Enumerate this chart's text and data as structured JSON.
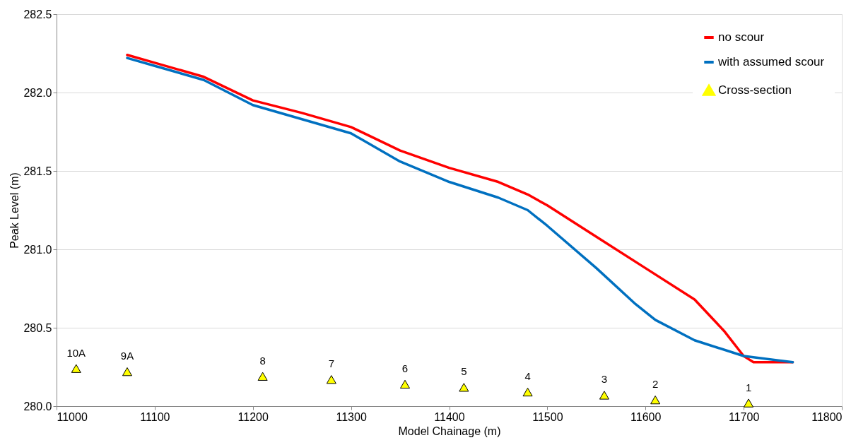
{
  "chart_data": {
    "type": "line",
    "xlabel": "Model Chainage (m)",
    "ylabel": "Peak Level (m)",
    "xlim": [
      11000,
      11800
    ],
    "xticks": [
      11000,
      11100,
      11200,
      11300,
      11400,
      11500,
      11600,
      11700,
      11800
    ],
    "ylim": [
      280.0,
      282.5
    ],
    "yticks": [
      {
        "value": 280.0,
        "label": "280.0"
      },
      {
        "value": 280.5,
        "label": "280.5"
      },
      {
        "value": 281.0,
        "label": "281.0"
      },
      {
        "value": 281.5,
        "label": "281.5"
      },
      {
        "value": 282.0,
        "label": "282.0"
      },
      {
        "value": 282.5,
        "label": "282.5"
      }
    ],
    "grid": "y",
    "legend": "top right",
    "line_style": "solid",
    "series": [
      {
        "name": "no scour",
        "color": "#ff0000",
        "x": [
          11072,
          11100,
          11150,
          11200,
          11250,
          11300,
          11350,
          11400,
          11450,
          11480,
          11500,
          11550,
          11600,
          11650,
          11680,
          11700,
          11710,
          11750
        ],
        "values": [
          282.24,
          282.19,
          282.1,
          281.95,
          281.87,
          281.78,
          281.63,
          281.52,
          281.43,
          281.35,
          281.28,
          281.08,
          280.88,
          280.68,
          280.48,
          280.32,
          280.28,
          280.28
        ]
      },
      {
        "name": "with assumed scour",
        "color": "#0070c0",
        "x": [
          11072,
          11100,
          11150,
          11200,
          11250,
          11300,
          11350,
          11400,
          11450,
          11480,
          11500,
          11550,
          11590,
          11610,
          11650,
          11700,
          11750
        ],
        "values": [
          282.22,
          282.17,
          282.08,
          281.92,
          281.83,
          281.74,
          281.56,
          281.43,
          281.33,
          281.25,
          281.15,
          280.88,
          280.65,
          280.55,
          280.42,
          280.32,
          280.28
        ]
      },
      {
        "name": "Cross-section",
        "type": "scatter",
        "marker": "triangle",
        "color": "#ffff00",
        "x": [
          11020,
          11072,
          11210,
          11280,
          11355,
          11415,
          11480,
          11558,
          11610,
          11705
        ],
        "values": [
          280.24,
          280.22,
          280.19,
          280.17,
          280.14,
          280.12,
          280.09,
          280.07,
          280.04,
          280.02
        ]
      }
    ],
    "annotations": [
      {
        "text": "10A",
        "x": 11020,
        "y": 280.24
      },
      {
        "text": "9A",
        "x": 11072,
        "y": 280.22
      },
      {
        "text": "8",
        "x": 11210,
        "y": 280.19
      },
      {
        "text": "7",
        "x": 11280,
        "y": 280.17
      },
      {
        "text": "6",
        "x": 11355,
        "y": 280.14
      },
      {
        "text": "5",
        "x": 11415,
        "y": 280.12
      },
      {
        "text": "4",
        "x": 11480,
        "y": 280.09
      },
      {
        "text": "3",
        "x": 11558,
        "y": 280.07
      },
      {
        "text": "2",
        "x": 11610,
        "y": 280.04
      },
      {
        "text": "1",
        "x": 11705,
        "y": 280.02
      }
    ]
  }
}
